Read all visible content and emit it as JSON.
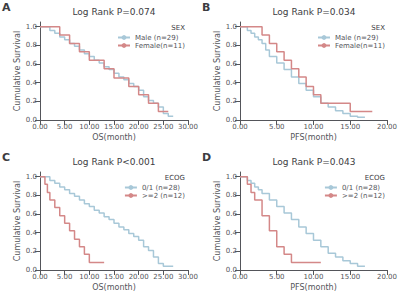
{
  "chart_data": [
    {
      "type": "step",
      "title": "Log Rank P=0.074",
      "annotations": [
        "A"
      ],
      "xlabel": "OS(month)",
      "ylabel": "Cumulative Survival",
      "legend_title": "SEX",
      "legend": "upper right",
      "grid": false,
      "xlim": [
        0,
        30
      ],
      "xticks": [
        {
          "value": 0,
          "label": "0.00"
        },
        {
          "value": 5,
          "label": "5.00"
        },
        {
          "value": 10,
          "label": "10.00"
        },
        {
          "value": 15,
          "label": "15.00"
        },
        {
          "value": 20,
          "label": "20.00"
        },
        {
          "value": 25,
          "label": "25.00"
        },
        {
          "value": 30,
          "label": "30.00"
        }
      ],
      "ylim": [
        0,
        1.05
      ],
      "yticks": [
        {
          "value": 0,
          "label": "0.0"
        },
        0.2,
        0.4,
        0.6,
        0.8,
        {
          "value": 1,
          "label": "1.0"
        }
      ],
      "series": [
        {
          "name": "Male (n=29)",
          "color": "#a8c8d8",
          "x": [
            0,
            1,
            2,
            3,
            4,
            5,
            6,
            7,
            8,
            9,
            10,
            11,
            12,
            13,
            14,
            15,
            16,
            17,
            18,
            19,
            20,
            21,
            22,
            23,
            24,
            25,
            26,
            27
          ],
          "values": [
            1.0,
            1.0,
            0.96,
            0.93,
            0.89,
            0.86,
            0.82,
            0.79,
            0.75,
            0.71,
            0.68,
            0.64,
            0.61,
            0.57,
            0.54,
            0.5,
            0.46,
            0.43,
            0.39,
            0.36,
            0.32,
            0.25,
            0.21,
            0.18,
            0.14,
            0.07,
            0.04,
            0.04
          ]
        },
        {
          "name": "Female(n=11)",
          "color": "#d48888",
          "x": [
            0,
            2,
            4,
            6,
            8,
            10,
            13,
            15,
            18,
            20,
            22,
            24,
            26
          ],
          "values": [
            1.0,
            1.0,
            0.91,
            0.82,
            0.73,
            0.64,
            0.55,
            0.45,
            0.36,
            0.27,
            0.18,
            0.09,
            0.09
          ]
        }
      ]
    },
    {
      "type": "step",
      "title": "Log Rank P=0.034",
      "annotations": [
        "B"
      ],
      "xlabel": "PFS(month)",
      "ylabel": "Cumulative Survival",
      "legend_title": "SEX",
      "legend": "upper right",
      "grid": false,
      "xlim": [
        0,
        20
      ],
      "xticks": [
        {
          "value": 0,
          "label": "0.00"
        },
        {
          "value": 5,
          "label": "5.00"
        },
        {
          "value": 10,
          "label": "10.00"
        },
        {
          "value": 15,
          "label": "15.00"
        },
        {
          "value": 20,
          "label": "20.00"
        }
      ],
      "ylim": [
        0,
        1.05
      ],
      "yticks": [
        {
          "value": 0,
          "label": "0.0"
        },
        0.2,
        0.4,
        0.6,
        0.8,
        {
          "value": 1,
          "label": "1.0"
        }
      ],
      "series": [
        {
          "name": "Male (n=29)",
          "color": "#a8c8d8",
          "x": [
            0,
            0.5,
            1,
            1.5,
            2,
            2.5,
            3,
            3.5,
            4,
            5,
            6,
            7,
            8,
            9,
            10,
            11,
            12,
            13,
            14,
            15,
            16,
            17
          ],
          "values": [
            1.0,
            1.0,
            0.96,
            0.93,
            0.89,
            0.86,
            0.82,
            0.75,
            0.68,
            0.61,
            0.54,
            0.46,
            0.39,
            0.32,
            0.25,
            0.18,
            0.14,
            0.1,
            0.07,
            0.04,
            0.03,
            0.03
          ]
        },
        {
          "name": "Female(n=11)",
          "color": "#d48888",
          "x": [
            0,
            1,
            2,
            3,
            4,
            5,
            6,
            7,
            8,
            9,
            10,
            11,
            13,
            15,
            17,
            18
          ],
          "values": [
            1.0,
            1.0,
            1.0,
            0.91,
            0.82,
            0.73,
            0.64,
            0.55,
            0.46,
            0.36,
            0.27,
            0.18,
            0.18,
            0.09,
            0.09,
            0.09
          ]
        }
      ]
    },
    {
      "type": "step",
      "title": "Log Rank P<0.001",
      "annotations": [
        "C"
      ],
      "xlabel": "OS(month)",
      "ylabel": "Cumulative Survival",
      "legend_title": "ECOG",
      "legend": "upper right",
      "grid": false,
      "xlim": [
        0,
        30
      ],
      "xticks": [
        {
          "value": 0,
          "label": "0.00"
        },
        {
          "value": 5,
          "label": "5.00"
        },
        {
          "value": 10,
          "label": "10.00"
        },
        {
          "value": 15,
          "label": "15.00"
        },
        {
          "value": 20,
          "label": "20.00"
        },
        {
          "value": 25,
          "label": "25.00"
        },
        {
          "value": 30,
          "label": "30.00"
        }
      ],
      "ylim": [
        0,
        1.05
      ],
      "yticks": [
        {
          "value": 0,
          "label": "0.0"
        },
        0.2,
        0.4,
        0.6,
        0.8,
        {
          "value": 1,
          "label": "1.0"
        }
      ],
      "series": [
        {
          "name": "0/1 (n=28)",
          "color": "#a8c8d8",
          "x": [
            0,
            1,
            2,
            3,
            4,
            5,
            6,
            7,
            8,
            9,
            10,
            11,
            12,
            13,
            14,
            15,
            16,
            17,
            18,
            19,
            20,
            21,
            22,
            23,
            24,
            25,
            26,
            27
          ],
          "values": [
            1.0,
            1.0,
            0.96,
            0.93,
            0.89,
            0.86,
            0.82,
            0.79,
            0.75,
            0.71,
            0.68,
            0.64,
            0.61,
            0.57,
            0.54,
            0.5,
            0.46,
            0.43,
            0.39,
            0.36,
            0.32,
            0.25,
            0.21,
            0.14,
            0.07,
            0.04,
            0.04,
            0.04
          ]
        },
        {
          "name": ">=2 (n=12)",
          "color": "#d48888",
          "x": [
            0,
            0.5,
            1,
            1.5,
            2,
            3,
            4,
            5,
            6,
            7,
            8,
            9,
            10,
            11,
            12,
            13
          ],
          "values": [
            1.0,
            1.0,
            0.92,
            0.83,
            0.75,
            0.67,
            0.58,
            0.5,
            0.42,
            0.33,
            0.25,
            0.17,
            0.08,
            0.08,
            0.08,
            0.08
          ]
        }
      ]
    },
    {
      "type": "step",
      "title": "Log Rank P=0.043",
      "annotations": [
        "D"
      ],
      "xlabel": "PFS(month)",
      "ylabel": "Cumulative Survival",
      "legend_title": "ECOG",
      "legend": "upper right",
      "grid": false,
      "xlim": [
        0,
        20
      ],
      "xticks": [
        {
          "value": 0,
          "label": "0.00"
        },
        {
          "value": 5,
          "label": "5.00"
        },
        {
          "value": 10,
          "label": "10.00"
        },
        {
          "value": 15,
          "label": "15.00"
        },
        {
          "value": 20,
          "label": "20.00"
        }
      ],
      "ylim": [
        0,
        1.05
      ],
      "yticks": [
        {
          "value": 0,
          "label": "0.0"
        },
        0.2,
        0.4,
        0.6,
        0.8,
        {
          "value": 1,
          "label": "1.0"
        }
      ],
      "series": [
        {
          "name": "0/1 (n=28)",
          "color": "#a8c8d8",
          "x": [
            0,
            0.5,
            1,
            1.5,
            2,
            2.5,
            3,
            4,
            5,
            6,
            7,
            8,
            9,
            10,
            11,
            12,
            13,
            14,
            15,
            16,
            17
          ],
          "values": [
            1.0,
            1.0,
            0.96,
            0.93,
            0.89,
            0.86,
            0.82,
            0.75,
            0.68,
            0.61,
            0.54,
            0.46,
            0.39,
            0.32,
            0.25,
            0.18,
            0.14,
            0.1,
            0.07,
            0.04,
            0.04
          ]
        },
        {
          "name": ">=2 (n=12)",
          "color": "#d48888",
          "x": [
            0,
            0.5,
            1,
            1.5,
            2,
            3,
            4,
            5,
            6,
            7,
            8,
            9,
            10,
            11
          ],
          "values": [
            1.0,
            1.0,
            0.92,
            0.83,
            0.75,
            0.58,
            0.42,
            0.25,
            0.17,
            0.08,
            0.08,
            0.08,
            0.08,
            0.08
          ]
        }
      ]
    }
  ]
}
